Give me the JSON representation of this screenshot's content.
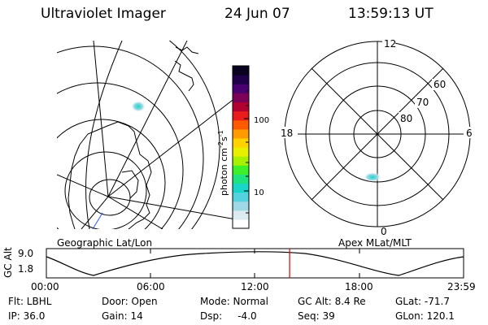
{
  "header": {
    "title": "Ultraviolet Imager",
    "date": "24 Jun 07",
    "time": "13:59:13 UT"
  },
  "left_panel": {
    "caption": "Geographic Lat/Lon"
  },
  "right_panel": {
    "caption": "Apex MLat/MLT",
    "mlt_labels": {
      "top": "12",
      "left": "18",
      "right": "6",
      "bottom": "0"
    },
    "lat_labels": [
      "60",
      "70",
      "80"
    ]
  },
  "colorbar": {
    "unit": "photon cm",
    "unit_sup1": "-2",
    "unit_mid": "s",
    "unit_sup2": "-1",
    "ticks": [
      "100",
      "10"
    ],
    "colors": [
      "#ffffff",
      "#dcebf2",
      "#9fd8e6",
      "#55d2e0",
      "#19d6c8",
      "#1ee37f",
      "#3df02a",
      "#a6f000",
      "#e8f000",
      "#ffd200",
      "#ff9a00",
      "#ff5a00",
      "#e81c1c",
      "#b20030",
      "#7d0058",
      "#4a0070",
      "#20004a",
      "#0a0020"
    ]
  },
  "altitude_plot": {
    "axis_label": "GC Alt",
    "y_ticks": [
      "9.0",
      "1.8"
    ],
    "x_ticks": [
      "00:00",
      "06:00",
      "12:00",
      "18:00",
      "23:59"
    ],
    "current_time_fraction": 0.583,
    "marker_color": "#e00000"
  },
  "info": {
    "flt": "Flt: LBHL",
    "ip": "IP: 36.0",
    "door": "Door: Open",
    "gain": "Gain: 14",
    "mode": "Mode: Normal",
    "dsp": "Dsp:     -4.0",
    "gc_alt": "GC Alt: 8.4 Re",
    "seq": "Seq: 39",
    "glat": "GLat: -71.7",
    "glon": "GLon: 120.1"
  }
}
